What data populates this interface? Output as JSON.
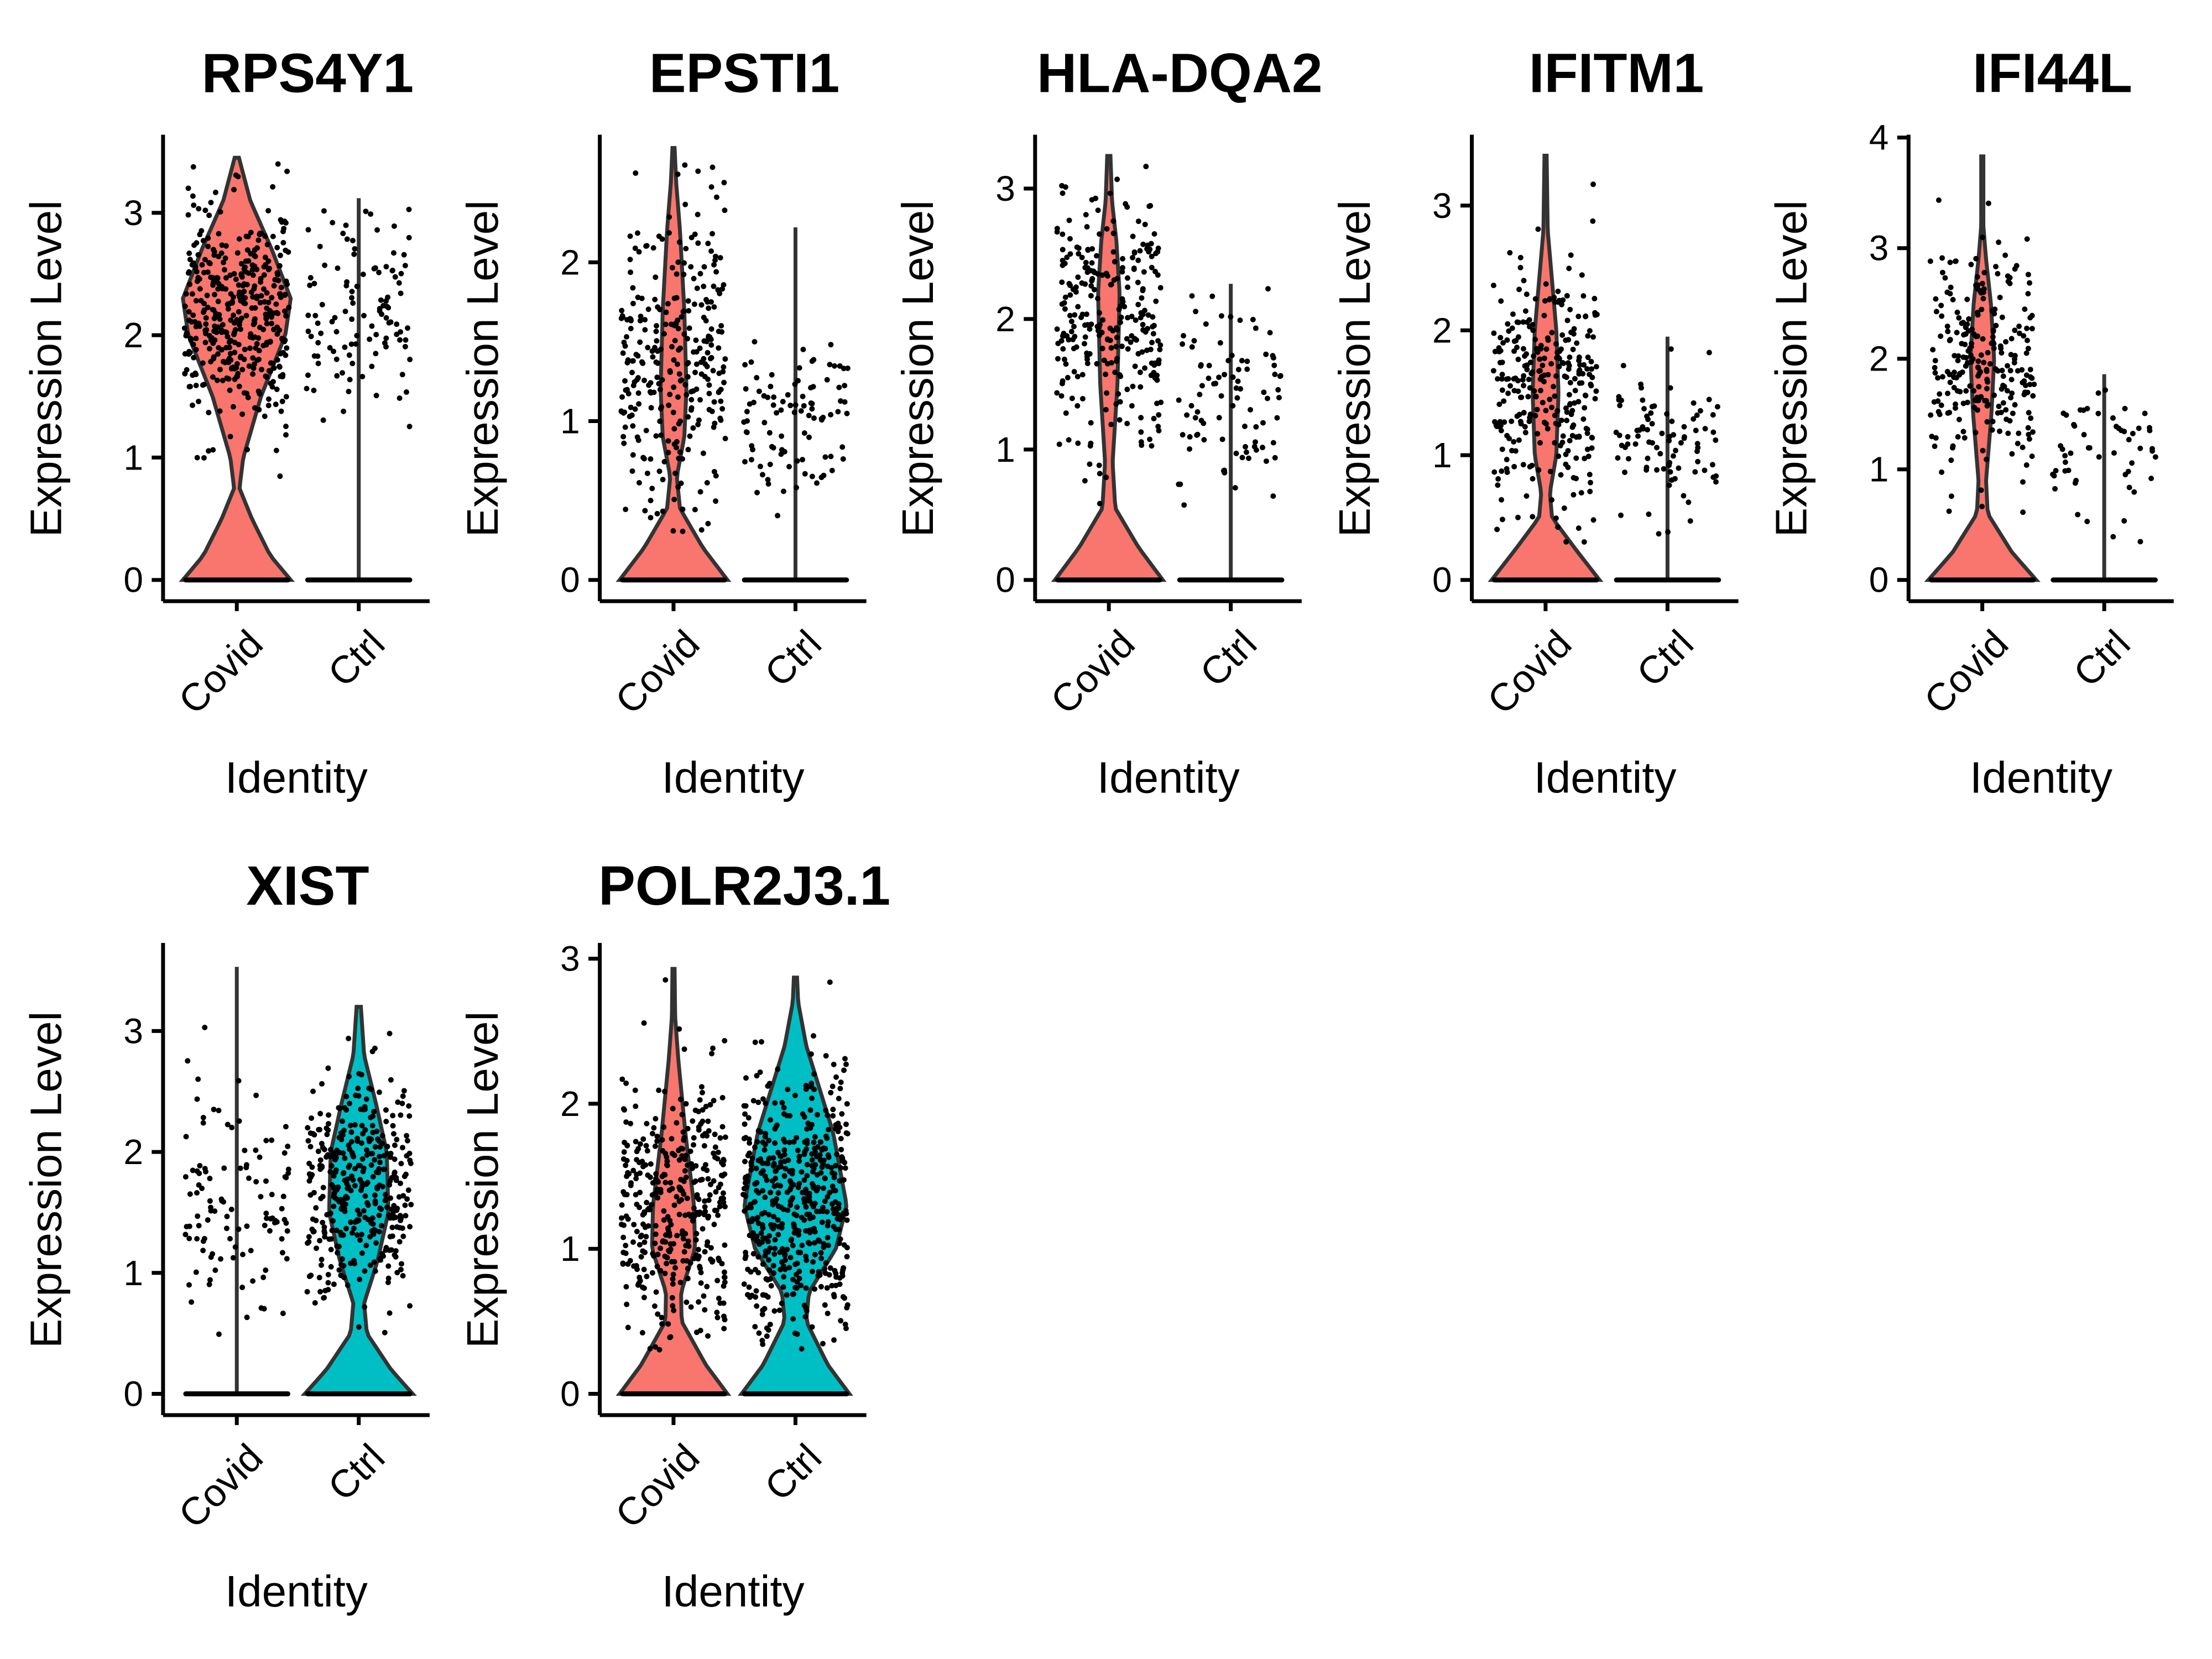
{
  "figure": {
    "ylabel": "Expression Level",
    "xlabel": "Identity"
  },
  "chart_data": [
    {
      "type": "violin",
      "title": "RPS4Y1",
      "xlabel": "Identity",
      "ylabel": "Expression Level",
      "categories": [
        "Covid",
        "Ctrl"
      ],
      "colors": {
        "Covid": "#F8766D",
        "Ctrl": "#00BFC4"
      },
      "yticks": [
        0,
        1,
        2,
        3
      ],
      "ylim": [
        -0.15,
        3.6
      ],
      "series": [
        {
          "name": "Covid",
          "max": 3.45,
          "points_nonzero": 420,
          "center": 2.15,
          "spread": 0.45,
          "violin_profile": [
            [
              0,
              1.0
            ],
            [
              0.2,
              0.62
            ],
            [
              0.5,
              0.28
            ],
            [
              0.75,
              0.05
            ],
            [
              1.0,
              0.12
            ],
            [
              1.5,
              0.45
            ],
            [
              2.0,
              0.9
            ],
            [
              2.3,
              1.0
            ],
            [
              2.7,
              0.65
            ],
            [
              3.1,
              0.25
            ],
            [
              3.45,
              0.04
            ]
          ]
        },
        {
          "name": "Ctrl",
          "max": 3.12,
          "points_nonzero": 110,
          "center": 2.2,
          "spread": 0.45,
          "violin_profile": [
            [
              0,
              1.0
            ],
            [
              0.05,
              0.02
            ],
            [
              3.12,
              0.02
            ]
          ]
        }
      ]
    },
    {
      "type": "violin",
      "title": "EPSTI1",
      "xlabel": "Identity",
      "ylabel": "Expression Level",
      "categories": [
        "Covid",
        "Ctrl"
      ],
      "colors": {
        "Covid": "#F8766D",
        "Ctrl": "#00BFC4"
      },
      "yticks": [
        0,
        1,
        2
      ],
      "ylim": [
        -0.1,
        2.85
      ],
      "series": [
        {
          "name": "Covid",
          "max": 2.72,
          "points_nonzero": 300,
          "center": 1.35,
          "spread": 0.5,
          "violin_profile": [
            [
              0,
              1.0
            ],
            [
              0.2,
              0.55
            ],
            [
              0.45,
              0.12
            ],
            [
              0.65,
              0.06
            ],
            [
              0.9,
              0.2
            ],
            [
              1.2,
              0.24
            ],
            [
              1.7,
              0.2
            ],
            [
              2.2,
              0.12
            ],
            [
              2.5,
              0.05
            ],
            [
              2.72,
              0.02
            ]
          ]
        },
        {
          "name": "Ctrl",
          "max": 2.22,
          "points_nonzero": 95,
          "center": 1.0,
          "spread": 0.28,
          "violin_profile": [
            [
              0,
              1.0
            ],
            [
              0.05,
              0.02
            ],
            [
              2.22,
              0.02
            ]
          ]
        }
      ]
    },
    {
      "type": "violin",
      "title": "HLA-DQA2",
      "xlabel": "Identity",
      "ylabel": "Expression Level",
      "categories": [
        "Covid",
        "Ctrl"
      ],
      "colors": {
        "Covid": "#F8766D",
        "Ctrl": "#00BFC4"
      },
      "yticks": [
        0,
        1,
        2,
        3
      ],
      "ylim": [
        -0.15,
        3.4
      ],
      "series": [
        {
          "name": "Covid",
          "max": 3.25,
          "points_nonzero": 280,
          "center": 2.0,
          "spread": 0.5,
          "violin_profile": [
            [
              0,
              1.0
            ],
            [
              0.25,
              0.55
            ],
            [
              0.55,
              0.12
            ],
            [
              0.9,
              0.07
            ],
            [
              1.5,
              0.16
            ],
            [
              2.2,
              0.2
            ],
            [
              2.6,
              0.14
            ],
            [
              2.9,
              0.06
            ],
            [
              3.25,
              0.03
            ]
          ]
        },
        {
          "name": "Ctrl",
          "max": 2.27,
          "points_nonzero": 90,
          "center": 1.35,
          "spread": 0.4,
          "violin_profile": [
            [
              0,
              1.0
            ],
            [
              0.05,
              0.02
            ],
            [
              2.27,
              0.02
            ]
          ]
        }
      ]
    },
    {
      "type": "violin",
      "title": "IFITM1",
      "xlabel": "Identity",
      "ylabel": "Expression Level",
      "categories": [
        "Covid",
        "Ctrl"
      ],
      "colors": {
        "Covid": "#F8766D",
        "Ctrl": "#00BFC4"
      },
      "yticks": [
        0,
        1,
        2,
        3
      ],
      "ylim": [
        -0.15,
        3.6
      ],
      "series": [
        {
          "name": "Covid",
          "max": 3.4,
          "points_nonzero": 300,
          "center": 1.5,
          "spread": 0.5,
          "violin_profile": [
            [
              0,
              1.0
            ],
            [
              0.25,
              0.55
            ],
            [
              0.5,
              0.12
            ],
            [
              0.7,
              0.08
            ],
            [
              1.0,
              0.2
            ],
            [
              1.5,
              0.24
            ],
            [
              2.0,
              0.2
            ],
            [
              2.4,
              0.12
            ],
            [
              2.8,
              0.04
            ],
            [
              3.4,
              0.02
            ]
          ]
        },
        {
          "name": "Ctrl",
          "max": 1.95,
          "points_nonzero": 90,
          "center": 1.1,
          "spread": 0.3,
          "violin_profile": [
            [
              0,
              1.0
            ],
            [
              0.05,
              0.02
            ],
            [
              1.95,
              0.02
            ]
          ]
        }
      ]
    },
    {
      "type": "violin",
      "title": "IFI44L",
      "xlabel": "Identity",
      "ylabel": "Expression Level",
      "categories": [
        "Covid",
        "Ctrl"
      ],
      "colors": {
        "Covid": "#F8766D",
        "Ctrl": "#00BFC4"
      },
      "yticks": [
        0,
        1,
        2,
        3,
        4
      ],
      "ylim": [
        -0.2,
        4.05
      ],
      "series": [
        {
          "name": "Covid",
          "max": 3.83,
          "points_nonzero": 260,
          "center": 1.95,
          "spread": 0.5,
          "violin_profile": [
            [
              0,
              1.0
            ],
            [
              0.25,
              0.55
            ],
            [
              0.6,
              0.1
            ],
            [
              0.9,
              0.07
            ],
            [
              1.5,
              0.17
            ],
            [
              2.0,
              0.22
            ],
            [
              2.5,
              0.16
            ],
            [
              2.9,
              0.07
            ],
            [
              3.2,
              0.02
            ],
            [
              3.83,
              0.02
            ]
          ]
        },
        {
          "name": "Ctrl",
          "max": 1.86,
          "points_nonzero": 55,
          "center": 1.05,
          "spread": 0.3,
          "violin_profile": [
            [
              0,
              1.0
            ],
            [
              0.05,
              0.02
            ],
            [
              1.86,
              0.02
            ]
          ]
        }
      ]
    },
    {
      "type": "violin",
      "title": "XIST",
      "xlabel": "Identity",
      "ylabel": "Expression Level",
      "categories": [
        "Covid",
        "Ctrl"
      ],
      "colors": {
        "Covid": "#F8766D",
        "Ctrl": "#00BFC4"
      },
      "yticks": [
        0,
        1,
        2,
        3
      ],
      "ylim": [
        -0.15,
        3.7
      ],
      "series": [
        {
          "name": "Covid",
          "max": 3.53,
          "points_nonzero": 110,
          "center": 1.6,
          "spread": 0.5,
          "violin_profile": [
            [
              0,
              1.0
            ],
            [
              0.05,
              0.02
            ],
            [
              3.53,
              0.02
            ]
          ]
        },
        {
          "name": "Ctrl",
          "max": 3.2,
          "points_nonzero": 380,
          "center": 1.7,
          "spread": 0.45,
          "violin_profile": [
            [
              0,
              1.0
            ],
            [
              0.2,
              0.6
            ],
            [
              0.5,
              0.15
            ],
            [
              0.75,
              0.1
            ],
            [
              1.1,
              0.35
            ],
            [
              1.5,
              0.55
            ],
            [
              2.0,
              0.52
            ],
            [
              2.4,
              0.32
            ],
            [
              2.8,
              0.1
            ],
            [
              3.2,
              0.04
            ]
          ]
        }
      ]
    },
    {
      "type": "violin",
      "title": "POLR2J3.1",
      "xlabel": "Identity",
      "ylabel": "Expression Level",
      "categories": [
        "Covid",
        "Ctrl"
      ],
      "colors": {
        "Covid": "#F8766D",
        "Ctrl": "#00BFC4"
      },
      "yticks": [
        0,
        1,
        2,
        3
      ],
      "ylim": [
        -0.15,
        3.1
      ],
      "series": [
        {
          "name": "Covid",
          "max": 2.93,
          "points_nonzero": 380,
          "center": 1.25,
          "spread": 0.45,
          "violin_profile": [
            [
              0,
              1.0
            ],
            [
              0.2,
              0.6
            ],
            [
              0.5,
              0.15
            ],
            [
              0.7,
              0.14
            ],
            [
              1.0,
              0.4
            ],
            [
              1.3,
              0.38
            ],
            [
              1.8,
              0.22
            ],
            [
              2.3,
              0.09
            ],
            [
              2.6,
              0.03
            ],
            [
              2.93,
              0.02
            ]
          ]
        },
        {
          "name": "Ctrl",
          "max": 2.87,
          "points_nonzero": 520,
          "center": 1.35,
          "spread": 0.45,
          "violin_profile": [
            [
              0,
              1.0
            ],
            [
              0.2,
              0.6
            ],
            [
              0.5,
              0.2
            ],
            [
              0.7,
              0.25
            ],
            [
              1.0,
              0.75
            ],
            [
              1.3,
              0.95
            ],
            [
              1.8,
              0.7
            ],
            [
              2.1,
              0.45
            ],
            [
              2.4,
              0.2
            ],
            [
              2.7,
              0.05
            ],
            [
              2.87,
              0.03
            ]
          ]
        }
      ]
    }
  ]
}
